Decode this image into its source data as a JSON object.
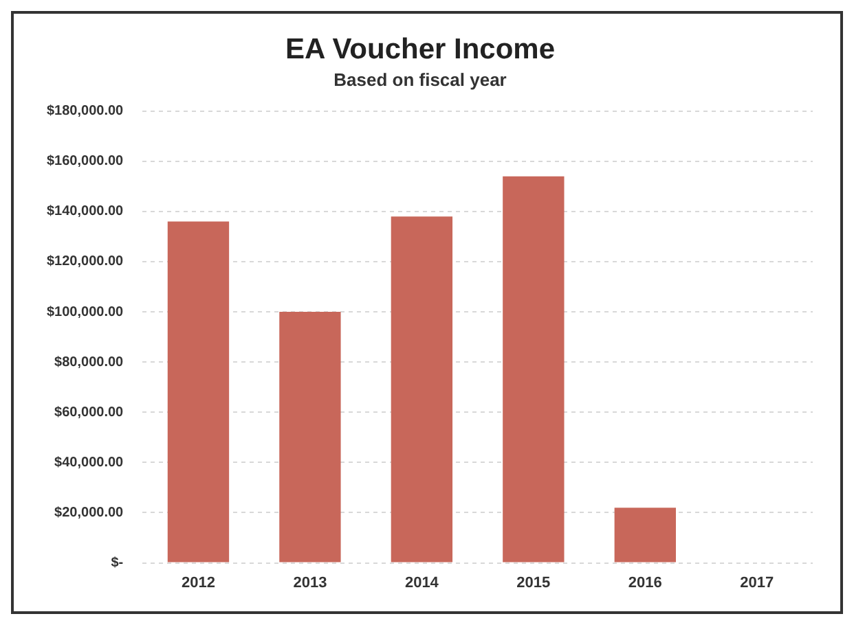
{
  "chart_data": {
    "type": "bar",
    "title": "EA Voucher Income",
    "subtitle": "Based on fiscal year",
    "categories": [
      "2012",
      "2013",
      "2014",
      "2015",
      "2016",
      "2017"
    ],
    "values": [
      136000,
      100000,
      138000,
      154000,
      22000,
      null
    ],
    "color": "#c8675a",
    "ylim": [
      0,
      180000
    ],
    "yticks": [
      {
        "value": 0,
        "label": "$-"
      },
      {
        "value": 20000,
        "label": "$20,000.00"
      },
      {
        "value": 40000,
        "label": "$40,000.00"
      },
      {
        "value": 60000,
        "label": "$60,000.00"
      },
      {
        "value": 80000,
        "label": "$80,000.00"
      },
      {
        "value": 100000,
        "label": "$100,000.00"
      },
      {
        "value": 120000,
        "label": "$120,000.00"
      },
      {
        "value": 140000,
        "label": "$140,000.00"
      },
      {
        "value": 160000,
        "label": "$160,000.00"
      },
      {
        "value": 180000,
        "label": "$180,000.00"
      }
    ],
    "grid": "y",
    "legend": false
  }
}
